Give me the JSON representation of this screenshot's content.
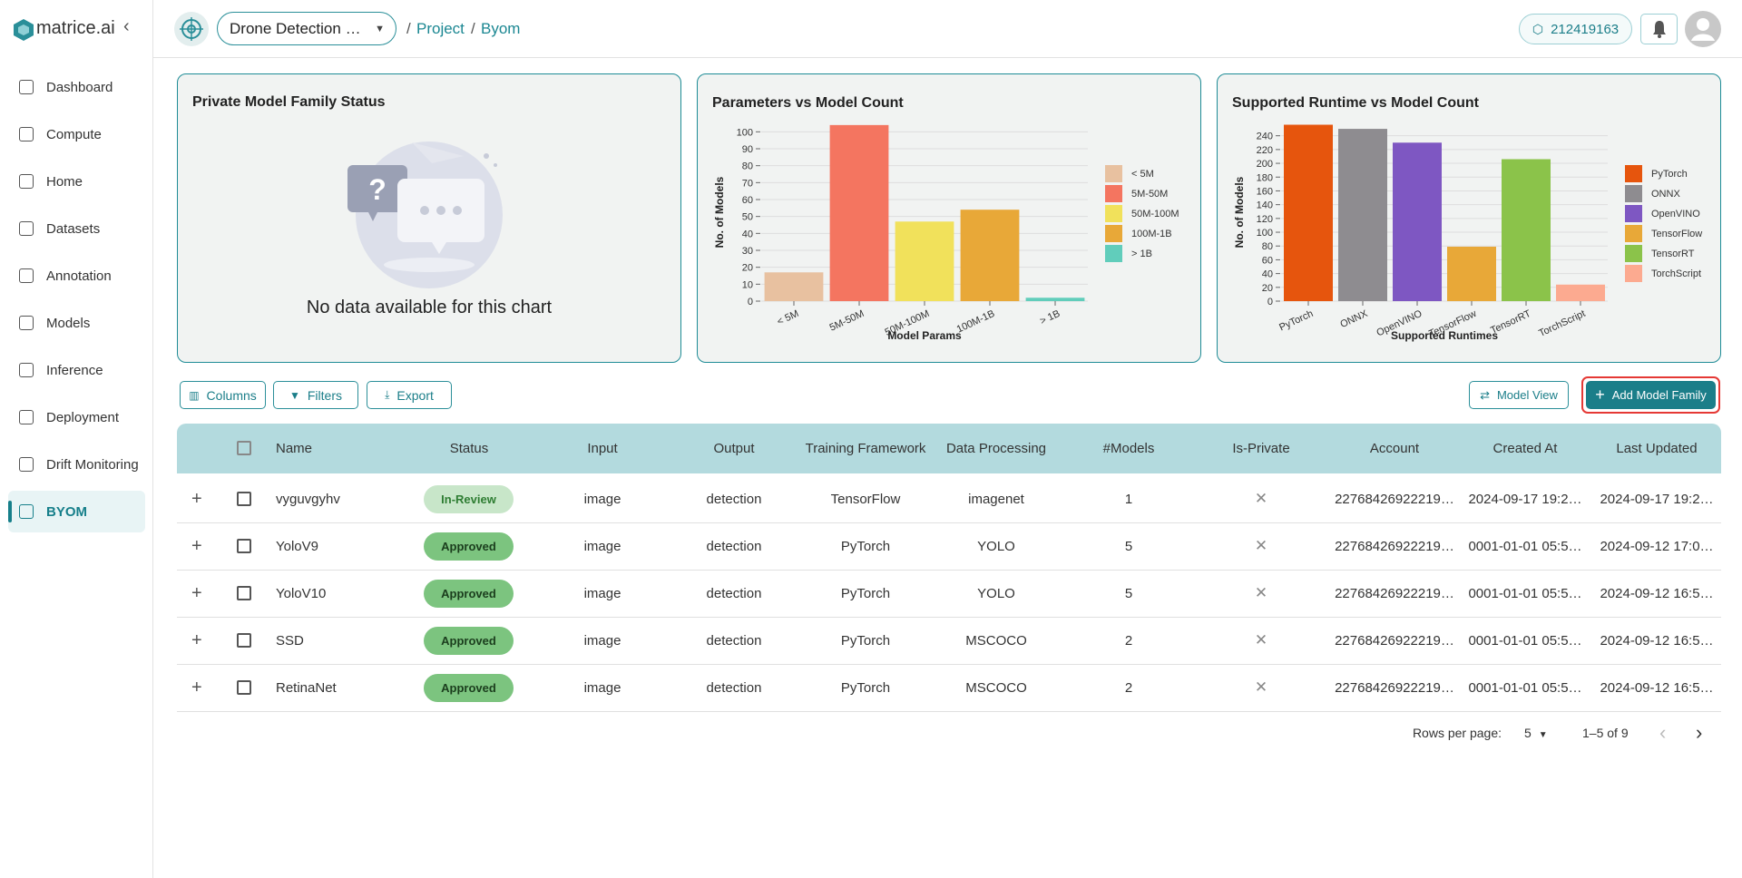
{
  "sidebar": {
    "logo": "matrice.ai",
    "items": [
      "Dashboard",
      "Compute",
      "Home",
      "Datasets",
      "Annotation",
      "Models",
      "Inference",
      "Deployment",
      "Drift Monitoring",
      "BYOM"
    ]
  },
  "header": {
    "project": "Drone Detection …",
    "breadcrumb": [
      "Project",
      "Byom"
    ],
    "credits": "212419163"
  },
  "charts": [
    {
      "title": "Private Model Family Status",
      "message": "No data available for this chart"
    },
    {
      "type": "bar",
      "title": "Parameters vs Model Count",
      "x_label": "Model Params",
      "y_label": "No. of Models",
      "categories": [
        "< 5M",
        "5M-50M",
        "50M-100M",
        "100M-1B",
        "> 1B"
      ],
      "values": [
        17,
        104,
        47,
        54,
        2
      ],
      "colors": [
        "#e8c1a0",
        "#f47560",
        "#f1e15b",
        "#e8a838",
        "#61cdbb"
      ],
      "ylim": [
        0,
        105
      ],
      "yticks": [
        0,
        10,
        20,
        30,
        40,
        50,
        60,
        70,
        80,
        90,
        100
      ],
      "grid": true,
      "legend": "right"
    },
    {
      "type": "bar",
      "title": "Supported Runtime vs Model Count",
      "x_label": "Supported Runtimes",
      "y_label": "No. of Models",
      "categories": [
        "PyTorch",
        "ONNX",
        "OpenVINO",
        "TensorFlow",
        "TensorRT",
        "TorchScript"
      ],
      "values": [
        256,
        250,
        230,
        79,
        206,
        24
      ],
      "colors": [
        "#e6550d",
        "#8e8c90",
        "#7e57c2",
        "#e8a838",
        "#8bc34a",
        "#fcaa90"
      ],
      "ylim": [
        0,
        258
      ],
      "yticks": [
        0,
        20,
        40,
        60,
        80,
        100,
        120,
        140,
        160,
        180,
        200,
        220,
        240
      ],
      "grid": true,
      "legend": "right"
    }
  ],
  "toolbar": {
    "buttons": [
      "Columns",
      "Filters",
      "Export"
    ],
    "model_view": "Model View",
    "add": "Add Model Family"
  },
  "table": {
    "columns": [
      "Name",
      "Status",
      "Input",
      "Output",
      "Training Framework",
      "Data Processing",
      "#Models",
      "Is-Private",
      "Account",
      "Created At",
      "Last Updated"
    ],
    "rows": [
      [
        "vyguvgyhv",
        "In-Review",
        "image",
        "detection",
        "TensorFlow",
        "imagenet",
        1,
        "22768426922219…",
        "2024-09-17 19:2…",
        "2024-09-17 19:2…"
      ],
      [
        "YoloV9",
        "Approved",
        "image",
        "detection",
        "PyTorch",
        "YOLO",
        5,
        "22768426922219…",
        "0001-01-01 05:5…",
        "2024-09-12 17:0…"
      ],
      [
        "YoloV10",
        "Approved",
        "image",
        "detection",
        "PyTorch",
        "YOLO",
        5,
        "22768426922219…",
        "0001-01-01 05:5…",
        "2024-09-12 16:5…"
      ],
      [
        "SSD",
        "Approved",
        "image",
        "detection",
        "PyTorch",
        "MSCOCO",
        2,
        "22768426922219…",
        "0001-01-01 05:5…",
        "2024-09-12 16:5…"
      ],
      [
        "RetinaNet",
        "Approved",
        "image",
        "detection",
        "PyTorch",
        "MSCOCO",
        2,
        "22768426922219…",
        "0001-01-01 05:5…",
        "2024-09-12 16:5…"
      ]
    ]
  },
  "pagination": {
    "rows_per_page_label": "Rows per page:",
    "rows_per_page": 5,
    "range": "1–5 of 9"
  }
}
